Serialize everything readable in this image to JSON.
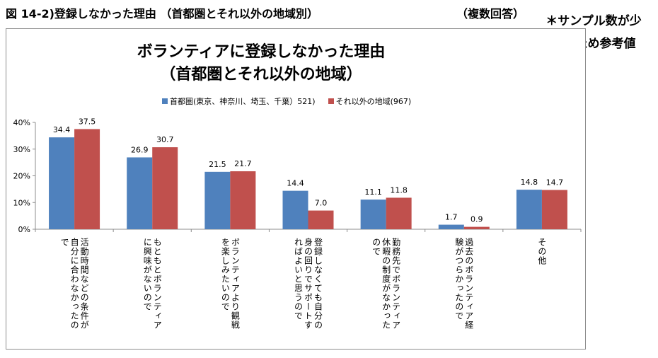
{
  "header": {
    "figure_title": "図 14-2)登録しなかった理由 （首都圏とそれ以外の地域別）",
    "answer_note": "（複数回答）",
    "sample_note_line1": "＊サンプル数が少",
    "sample_note_line2": "ないため参考値"
  },
  "chart_data": {
    "type": "bar",
    "title_line1": "ボランティアに登録しなかった理由",
    "title_line2": "（首都圏とそれ以外の地域）",
    "categories": [
      "活動時間などの条件が自分に合わなかったので",
      "もともとボランティアに興味がないので",
      "ボランティアより観戦を楽しみたいので",
      "登録しなくても自分の身の回りでサポートすればよいと思うので",
      "勤務先でボランティア休暇の制度がなかったので",
      "過去のボランティア経験がつらかったので",
      "その他"
    ],
    "category_lines": [
      [
        "活動時間などの条件が",
        "自分に合わなかったの",
        "で"
      ],
      [
        "もともとボランティア",
        "に興味がないので"
      ],
      [
        "ボランティアより観戦",
        "を楽しみたいので"
      ],
      [
        "登録しなくても自分の",
        "身の回りでサポートす",
        "ればよいと思うので"
      ],
      [
        "勤務先でボランティア",
        "休暇の制度がなかった",
        "ので"
      ],
      [
        "過去のボランティア経",
        "験がつらかったので"
      ],
      [
        "その他"
      ]
    ],
    "series": [
      {
        "name": "首都圏(東京、神奈川、埼玉、千葉）521)",
        "color": "#4f81bd",
        "values": [
          34.4,
          26.9,
          21.5,
          14.4,
          11.1,
          1.7,
          14.8
        ]
      },
      {
        "name": "それ以外の地域(967)",
        "color": "#c0504d",
        "values": [
          37.5,
          30.7,
          21.7,
          7.0,
          11.8,
          0.9,
          14.7
        ]
      }
    ],
    "y_ticks": [
      "0%",
      "10%",
      "20%",
      "30%",
      "40%"
    ],
    "ylim": [
      0,
      40
    ],
    "grid": false,
    "legend_position": "top"
  }
}
